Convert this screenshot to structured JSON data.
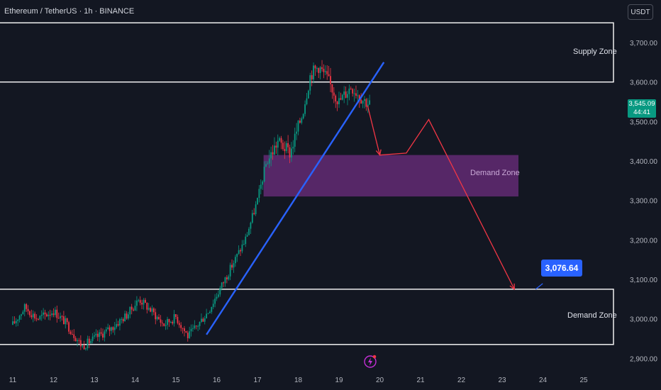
{
  "header": {
    "symbol_title": "Ethereum / TetherUS · 1h · BINANCE",
    "currency_button": "USDT"
  },
  "price_tag": {
    "price": "3,545.09",
    "countdown": "44:41",
    "color": "#089981"
  },
  "target_tag": {
    "label": "3,076.64",
    "color": "#2962ff"
  },
  "zones": {
    "supply_label": "Supply Zone",
    "demand_mid_label": "Demand Zone",
    "demand_low_label": "Demand Zone"
  },
  "colors": {
    "background": "#131722",
    "up_candle": "#089981",
    "down_candle": "#f23645",
    "trendline": "#2962ff",
    "projection": "#f23645",
    "mid_zone_fill": "#7b2f8e",
    "zone_border": "#ffffff"
  },
  "chart_data": {
    "type": "candlestick",
    "title": "Ethereum / TetherUS · 1h · BINANCE",
    "xlabel": "",
    "ylabel": "",
    "x_ticks": [
      "11",
      "12",
      "13",
      "14",
      "15",
      "16",
      "17",
      "18",
      "19",
      "20",
      "21",
      "22",
      "23",
      "24",
      "25"
    ],
    "y_ticks": [
      "3,700.00",
      "3,600.00",
      "3,500.00",
      "3,400.00",
      "3,300.00",
      "3,200.00",
      "3,100.00",
      "3,000.00",
      "2,900.00"
    ],
    "y_tick_values": [
      3700,
      3600,
      3500,
      3400,
      3300,
      3200,
      3100,
      3000,
      2900
    ],
    "ylim": [
      2885,
      3795
    ],
    "xlim": [
      10.95,
      25.6
    ],
    "price_path": [
      [
        11.0,
        2985
      ],
      [
        11.3,
        3030
      ],
      [
        11.6,
        3000
      ],
      [
        12.0,
        3020
      ],
      [
        12.3,
        2990
      ],
      [
        12.7,
        2930
      ],
      [
        13.0,
        2950
      ],
      [
        13.4,
        2975
      ],
      [
        13.8,
        3010
      ],
      [
        14.1,
        3050
      ],
      [
        14.4,
        3020
      ],
      [
        14.7,
        2985
      ],
      [
        15.0,
        3005
      ],
      [
        15.3,
        2955
      ],
      [
        15.5,
        2980
      ],
      [
        15.8,
        3020
      ],
      [
        16.1,
        3080
      ],
      [
        16.4,
        3140
      ],
      [
        16.7,
        3200
      ],
      [
        17.0,
        3300
      ],
      [
        17.2,
        3390
      ],
      [
        17.5,
        3450
      ],
      [
        17.8,
        3420
      ],
      [
        18.1,
        3520
      ],
      [
        18.3,
        3620
      ],
      [
        18.5,
        3640
      ],
      [
        18.7,
        3610
      ],
      [
        19.0,
        3550
      ],
      [
        19.3,
        3590
      ],
      [
        19.6,
        3555
      ],
      [
        19.75,
        3545
      ]
    ],
    "zones": [
      {
        "name": "Supply Zone",
        "y_from": 3600,
        "y_to": 3750
      },
      {
        "name": "Demand Zone",
        "y_from": 3310,
        "y_to": 3415,
        "x_from": 17.15,
        "x_to": 23.4
      },
      {
        "name": "Demand Zone",
        "y_from": 2935,
        "y_to": 3075
      }
    ],
    "trendline": [
      [
        15.75,
        2960
      ],
      [
        20.1,
        3650
      ]
    ],
    "projection": [
      [
        19.7,
        3540
      ],
      [
        20.0,
        3415
      ],
      [
        20.65,
        3420
      ],
      [
        21.2,
        3505
      ],
      [
        23.3,
        3075
      ]
    ],
    "target_value": 3076.64,
    "last_price": 3545.09,
    "grid": false,
    "legend": "none"
  }
}
